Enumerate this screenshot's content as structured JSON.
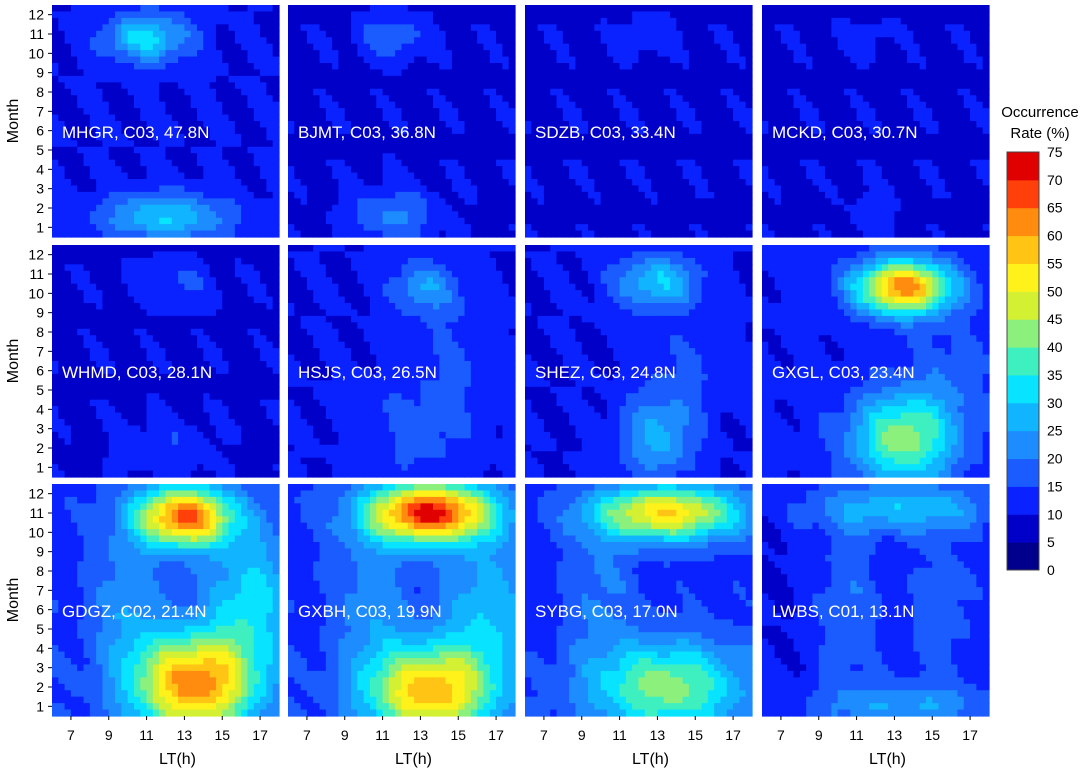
{
  "chart_data": {
    "type": "heatmap",
    "title": "",
    "xlabel": "LT(h)",
    "ylabel": "Month",
    "x_ticks": [
      7,
      9,
      11,
      13,
      15,
      17
    ],
    "y_ticks": [
      1,
      2,
      3,
      4,
      5,
      6,
      7,
      8,
      9,
      10,
      11,
      12
    ],
    "x_range": [
      6,
      18
    ],
    "y_range": [
      0.5,
      12.5
    ],
    "colorbar": {
      "title_line1": "Occurrence",
      "title_line2": "Rate (%)",
      "ticks": [
        0,
        5,
        10,
        15,
        20,
        25,
        30,
        35,
        40,
        45,
        50,
        55,
        60,
        65,
        70,
        75
      ],
      "range": [
        0,
        75
      ]
    },
    "panels": [
      {
        "label": "MHGR, C03, 47.8N",
        "station": "MHGR",
        "prn": "C03",
        "lat": "47.8N",
        "base": 10,
        "blobs": [
          {
            "lt": 11,
            "month": 10.8,
            "amp": 22,
            "sx": 1.6,
            "sy": 0.9
          },
          {
            "lt": 12,
            "month": 1.5,
            "amp": 20,
            "sx": 2.4,
            "sy": 0.9
          }
        ]
      },
      {
        "label": "BJMT, C03, 36.8N",
        "station": "BJMT",
        "prn": "C03",
        "lat": "36.8N",
        "base": 9,
        "blobs": [
          {
            "lt": 11.5,
            "month": 10.8,
            "amp": 10,
            "sx": 1.3,
            "sy": 0.8
          },
          {
            "lt": 11.5,
            "month": 1.6,
            "amp": 12,
            "sx": 1.6,
            "sy": 1.0
          }
        ]
      },
      {
        "label": "SDZB, C03, 33.4N",
        "station": "SDZB",
        "prn": "C03",
        "lat": "33.4N",
        "base": 9,
        "blobs": [
          {
            "lt": 12.5,
            "month": 11,
            "amp": 5,
            "sx": 1.0,
            "sy": 0.7
          }
        ]
      },
      {
        "label": "MCKD, C03, 30.7N",
        "station": "MCKD",
        "prn": "C03",
        "lat": "30.7N",
        "base": 9,
        "blobs": [
          {
            "lt": 11.5,
            "month": 10.8,
            "amp": 4,
            "sx": 0.8,
            "sy": 0.6
          },
          {
            "lt": 11.8,
            "month": 1.8,
            "amp": 4,
            "sx": 0.8,
            "sy": 0.8
          }
        ]
      },
      {
        "label": "WHMD, C03, 28.1N",
        "station": "WHMD",
        "prn": "C03",
        "lat": "28.1N",
        "base": 9,
        "blobs": [
          {
            "lt": 12.5,
            "month": 10.5,
            "amp": 7,
            "sx": 1.4,
            "sy": 0.9
          },
          {
            "lt": 12,
            "month": 2,
            "amp": 6,
            "sx": 1.6,
            "sy": 1.0
          }
        ]
      },
      {
        "label": "HSJS, C03, 26.5N",
        "station": "HSJS",
        "prn": "C03",
        "lat": "26.5N",
        "base": 10,
        "blobs": [
          {
            "lt": 13.2,
            "month": 10.3,
            "amp": 14,
            "sx": 1.3,
            "sy": 1.0
          },
          {
            "lt": 13,
            "month": 3,
            "amp": 7,
            "sx": 2.2,
            "sy": 2.0
          },
          {
            "lt": 15,
            "month": 7,
            "amp": 5,
            "sx": 1.5,
            "sy": 2.0
          }
        ]
      },
      {
        "label": "SHEZ, C03, 24.8N",
        "station": "SHEZ",
        "prn": "C03",
        "lat": "24.8N",
        "base": 10,
        "blobs": [
          {
            "lt": 13,
            "month": 10.6,
            "amp": 20,
            "sx": 1.6,
            "sy": 1.0
          },
          {
            "lt": 13,
            "month": 2.5,
            "amp": 16,
            "sx": 1.4,
            "sy": 1.6
          },
          {
            "lt": 14.5,
            "month": 6,
            "amp": 5,
            "sx": 1.5,
            "sy": 2.0
          }
        ]
      },
      {
        "label": "GXGL, C03, 23.4N",
        "station": "GXGL",
        "prn": "C03",
        "lat": "23.4N",
        "base": 11,
        "blobs": [
          {
            "lt": 13.5,
            "month": 10.3,
            "amp": 52,
            "sx": 1.8,
            "sy": 1.0
          },
          {
            "lt": 13.5,
            "month": 2.5,
            "amp": 32,
            "sx": 2.0,
            "sy": 1.7
          },
          {
            "lt": 16,
            "month": 6,
            "amp": 6,
            "sx": 1.5,
            "sy": 2.0
          }
        ]
      },
      {
        "label": "GDGZ, C02, 21.4N",
        "station": "GDGZ",
        "prn": "C02",
        "lat": "21.4N",
        "base": 14,
        "blobs": [
          {
            "lt": 13,
            "month": 10.8,
            "amp": 52,
            "sx": 1.8,
            "sy": 1.1
          },
          {
            "lt": 13.5,
            "month": 2.2,
            "amp": 50,
            "sx": 2.3,
            "sy": 1.8
          },
          {
            "lt": 16.5,
            "month": 6.5,
            "amp": 18,
            "sx": 1.6,
            "sy": 2.5
          },
          {
            "lt": 10,
            "month": 6.5,
            "amp": 10,
            "sx": 1.2,
            "sy": 2.5
          }
        ]
      },
      {
        "label": "GXBH, C03, 19.9N",
        "station": "GXBH",
        "prn": "C03",
        "lat": "19.9N",
        "base": 14,
        "blobs": [
          {
            "lt": 13.5,
            "month": 11,
            "amp": 58,
            "sx": 2.4,
            "sy": 1.1
          },
          {
            "lt": 13.5,
            "month": 1.8,
            "amp": 45,
            "sx": 2.4,
            "sy": 1.7
          },
          {
            "lt": 16.5,
            "month": 6,
            "amp": 15,
            "sx": 1.6,
            "sy": 2.5
          },
          {
            "lt": 10.5,
            "month": 6.5,
            "amp": 10,
            "sx": 1.2,
            "sy": 2.5
          }
        ]
      },
      {
        "label": "SYBG, C03, 17.0N",
        "station": "SYBG",
        "prn": "C03",
        "lat": "17.0N",
        "base": 13,
        "blobs": [
          {
            "lt": 13.5,
            "month": 11,
            "amp": 42,
            "sx": 2.8,
            "sy": 1.0
          },
          {
            "lt": 13.5,
            "month": 2,
            "amp": 30,
            "sx": 3.0,
            "sy": 1.7
          },
          {
            "lt": 10,
            "month": 7,
            "amp": 8,
            "sx": 1.2,
            "sy": 2.5
          }
        ]
      },
      {
        "label": "LWBS, C01, 13.1N",
        "station": "LWBS",
        "prn": "C01",
        "lat": "13.1N",
        "base": 10,
        "blobs": [
          {
            "lt": 13.5,
            "month": 11.3,
            "amp": 18,
            "sx": 3.5,
            "sy": 1.0
          },
          {
            "lt": 13.5,
            "month": 1,
            "amp": 14,
            "sx": 3.5,
            "sy": 0.9
          },
          {
            "lt": 10.5,
            "month": 6,
            "amp": 10,
            "sx": 1.2,
            "sy": 3.0
          },
          {
            "lt": 15.5,
            "month": 6,
            "amp": 8,
            "sx": 1.5,
            "sy": 3.0
          }
        ]
      }
    ]
  }
}
